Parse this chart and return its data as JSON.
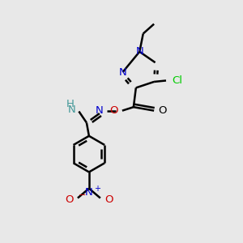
{
  "background_color": "#e8e8e8",
  "bond_color": "#000000",
  "bond_width": 1.8,
  "figsize": [
    3.0,
    3.0
  ],
  "dpi": 100,
  "colors": {
    "N": "#0000cc",
    "O": "#cc0000",
    "Cl": "#00cc00",
    "NH": "#449999",
    "black": "#000000"
  }
}
